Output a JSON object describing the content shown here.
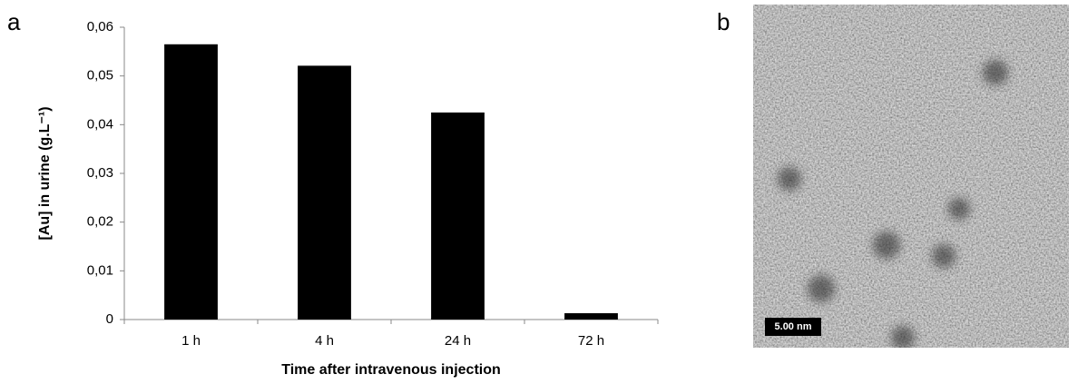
{
  "chart_data": {
    "type": "bar",
    "panel": "a",
    "categories": [
      "1 h",
      "4 h",
      "24 h",
      "72 h"
    ],
    "values": [
      0.0565,
      0.0521,
      0.0425,
      0.0013
    ],
    "color": "#000000",
    "ylim": [
      0,
      0.06
    ],
    "yticks": [
      0,
      {
        "value": 0.01,
        "label": "0,01"
      },
      {
        "value": 0.02,
        "label": "0,02"
      },
      {
        "value": 0.03,
        "label": "0,03"
      },
      {
        "value": 0.04,
        "label": "0,04"
      },
      {
        "value": 0.05,
        "label": "0,05"
      },
      {
        "value": 0.06,
        "label": "0,06"
      }
    ],
    "ylabel": "[Au] in urine (g.L⁻¹)",
    "xlabel": "Time after intravenous injection",
    "grid": false
  },
  "image": {
    "panel": "b",
    "scale_bar": "5.00 nm"
  }
}
